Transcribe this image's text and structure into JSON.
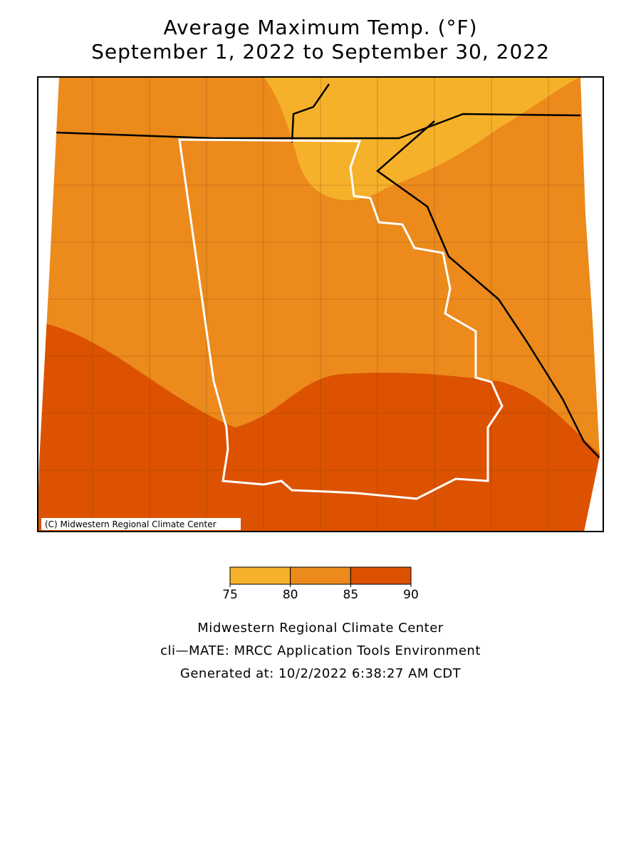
{
  "title": [
    "Average Maximum Temp. (°F)",
    "September 1, 2022 to September 30, 2022"
  ],
  "map": {
    "copyright": "(C) Midwestern Regional Climate Center"
  },
  "legend": {
    "ticks": [
      75,
      80,
      85,
      90
    ],
    "colors": [
      "#f6b12a",
      "#ec8a1c",
      "#dc5200"
    ]
  },
  "footer": [
    "Midwestern Regional Climate Center",
    "cli—MATE: MRCC Application Tools Environment",
    "Generated at: 10/2/2022 6:38:27 AM CDT"
  ]
}
